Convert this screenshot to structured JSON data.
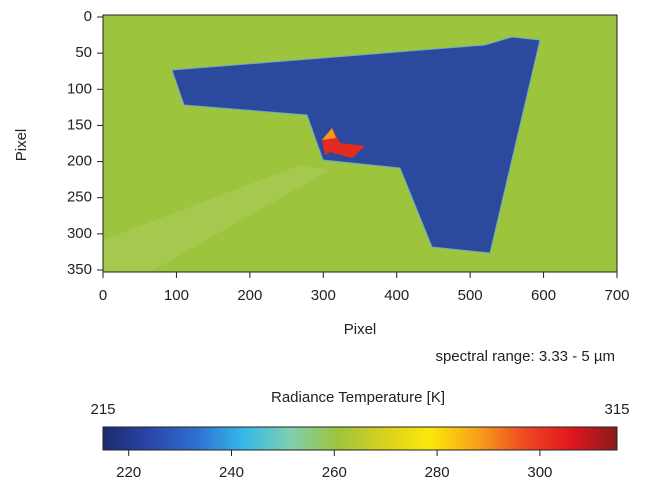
{
  "chart_data": {
    "type": "heatmap",
    "xlabel": "Pixel",
    "ylabel": "Pixel",
    "annotation": "spectral range: 3.33 - 5 µm",
    "xlim": [
      0,
      700
    ],
    "xticks": [
      0,
      100,
      200,
      300,
      400,
      500,
      600,
      700
    ],
    "ylim": [
      0,
      350
    ],
    "yticks": [
      0,
      50,
      100,
      150,
      200,
      250,
      300,
      350
    ],
    "y_inverted": true,
    "colorbar": {
      "label": "Radiance Temperature [K]",
      "clim": [
        215,
        315
      ],
      "ticks": [
        220,
        240,
        260,
        280,
        300
      ],
      "colormap": [
        "#1c2a6e",
        "#2a46a8",
        "#2f6fd0",
        "#35b8e8",
        "#7fcfb0",
        "#9cc43c",
        "#d8d020",
        "#fbe80a",
        "#f7a21a",
        "#ee4a22",
        "#e0181e",
        "#8a1a1a"
      ]
    }
  }
}
